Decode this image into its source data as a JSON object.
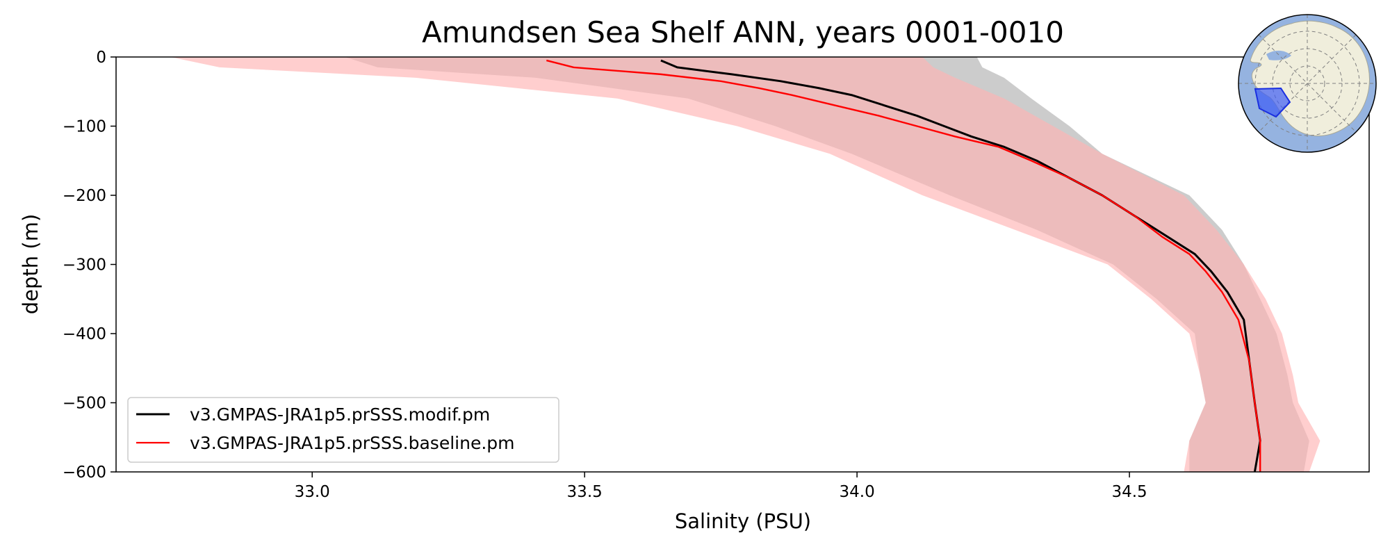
{
  "chart_data": {
    "type": "line",
    "title": "Amundsen Sea Shelf ANN, years 0001-0010",
    "xlabel": "Salinity (PSU)",
    "ylabel": "depth (m)",
    "xlim": [
      32.64,
      34.94
    ],
    "ylim": [
      -600,
      0
    ],
    "xticks": [
      33.0,
      33.5,
      34.0,
      34.5
    ],
    "xtick_labels": [
      "33.0",
      "33.5",
      "34.0",
      "34.5"
    ],
    "yticks": [
      0,
      -100,
      -200,
      -300,
      -400,
      -500,
      -600
    ],
    "ytick_labels": [
      "0",
      "−100",
      "−200",
      "−300",
      "−400",
      "−500",
      "−600"
    ],
    "legend_position": "lower-left",
    "colors": {
      "modif": "#000000",
      "baseline": "#ff0000",
      "modif_band": "#bfbfbf",
      "baseline_band": "#ffb3b3",
      "overlap_band": "#d6a3a3"
    },
    "series": [
      {
        "name": "v3.GMPAS-JRA1p5.prSSS.modif.pm",
        "color": "#000000",
        "depth": [
          -5,
          -15,
          -25,
          -35,
          -45,
          -55,
          -70,
          -85,
          -100,
          -115,
          -130,
          -150,
          -175,
          -200,
          -230,
          -260,
          -285,
          -310,
          -340,
          -380,
          -440,
          -500,
          -555,
          -600
        ],
        "mean": [
          33.64,
          33.67,
          33.77,
          33.86,
          33.93,
          33.99,
          34.05,
          34.11,
          34.16,
          34.21,
          34.27,
          34.33,
          34.39,
          34.45,
          34.51,
          34.57,
          34.62,
          34.65,
          34.68,
          34.71,
          34.72,
          34.73,
          34.74,
          34.73
        ],
        "band_depth": [
          0,
          -15,
          -30,
          -60,
          -100,
          -140,
          -200,
          -250,
          -300,
          -350,
          -400,
          -460,
          -500,
          -555,
          -600
        ],
        "band_low": [
          33.06,
          33.12,
          33.41,
          33.69,
          33.85,
          33.99,
          34.17,
          34.33,
          34.47,
          34.55,
          34.62,
          34.63,
          34.64,
          34.61,
          34.61
        ],
        "band_high": [
          34.22,
          34.23,
          34.27,
          34.32,
          34.39,
          34.45,
          34.61,
          34.67,
          34.71,
          34.74,
          34.77,
          34.79,
          34.8,
          34.83,
          34.82
        ]
      },
      {
        "name": "v3.GMPAS-JRA1p5.prSSS.baseline.pm",
        "color": "#ff0000",
        "depth": [
          -5,
          -15,
          -25,
          -35,
          -45,
          -55,
          -70,
          -85,
          -100,
          -115,
          -130,
          -150,
          -175,
          -200,
          -230,
          -260,
          -285,
          -310,
          -340,
          -380,
          -440,
          -500,
          -555,
          -600
        ],
        "mean": [
          33.43,
          33.48,
          33.64,
          33.75,
          33.82,
          33.88,
          33.96,
          34.04,
          34.11,
          34.18,
          34.26,
          34.32,
          34.39,
          34.45,
          34.51,
          34.56,
          34.61,
          34.64,
          34.67,
          34.7,
          34.72,
          34.73,
          34.74,
          34.74
        ],
        "band_depth": [
          0,
          -15,
          -30,
          -60,
          -100,
          -140,
          -200,
          -250,
          -300,
          -350,
          -400,
          -460,
          -500,
          -555,
          -600
        ],
        "band_low": [
          32.74,
          32.83,
          33.19,
          33.56,
          33.78,
          33.95,
          34.12,
          34.29,
          34.46,
          34.54,
          34.61,
          34.63,
          34.64,
          34.61,
          34.6
        ],
        "band_high": [
          34.12,
          34.14,
          34.18,
          34.27,
          34.36,
          34.45,
          34.6,
          34.66,
          34.71,
          34.75,
          34.78,
          34.8,
          34.81,
          34.85,
          34.83
        ]
      }
    ]
  }
}
